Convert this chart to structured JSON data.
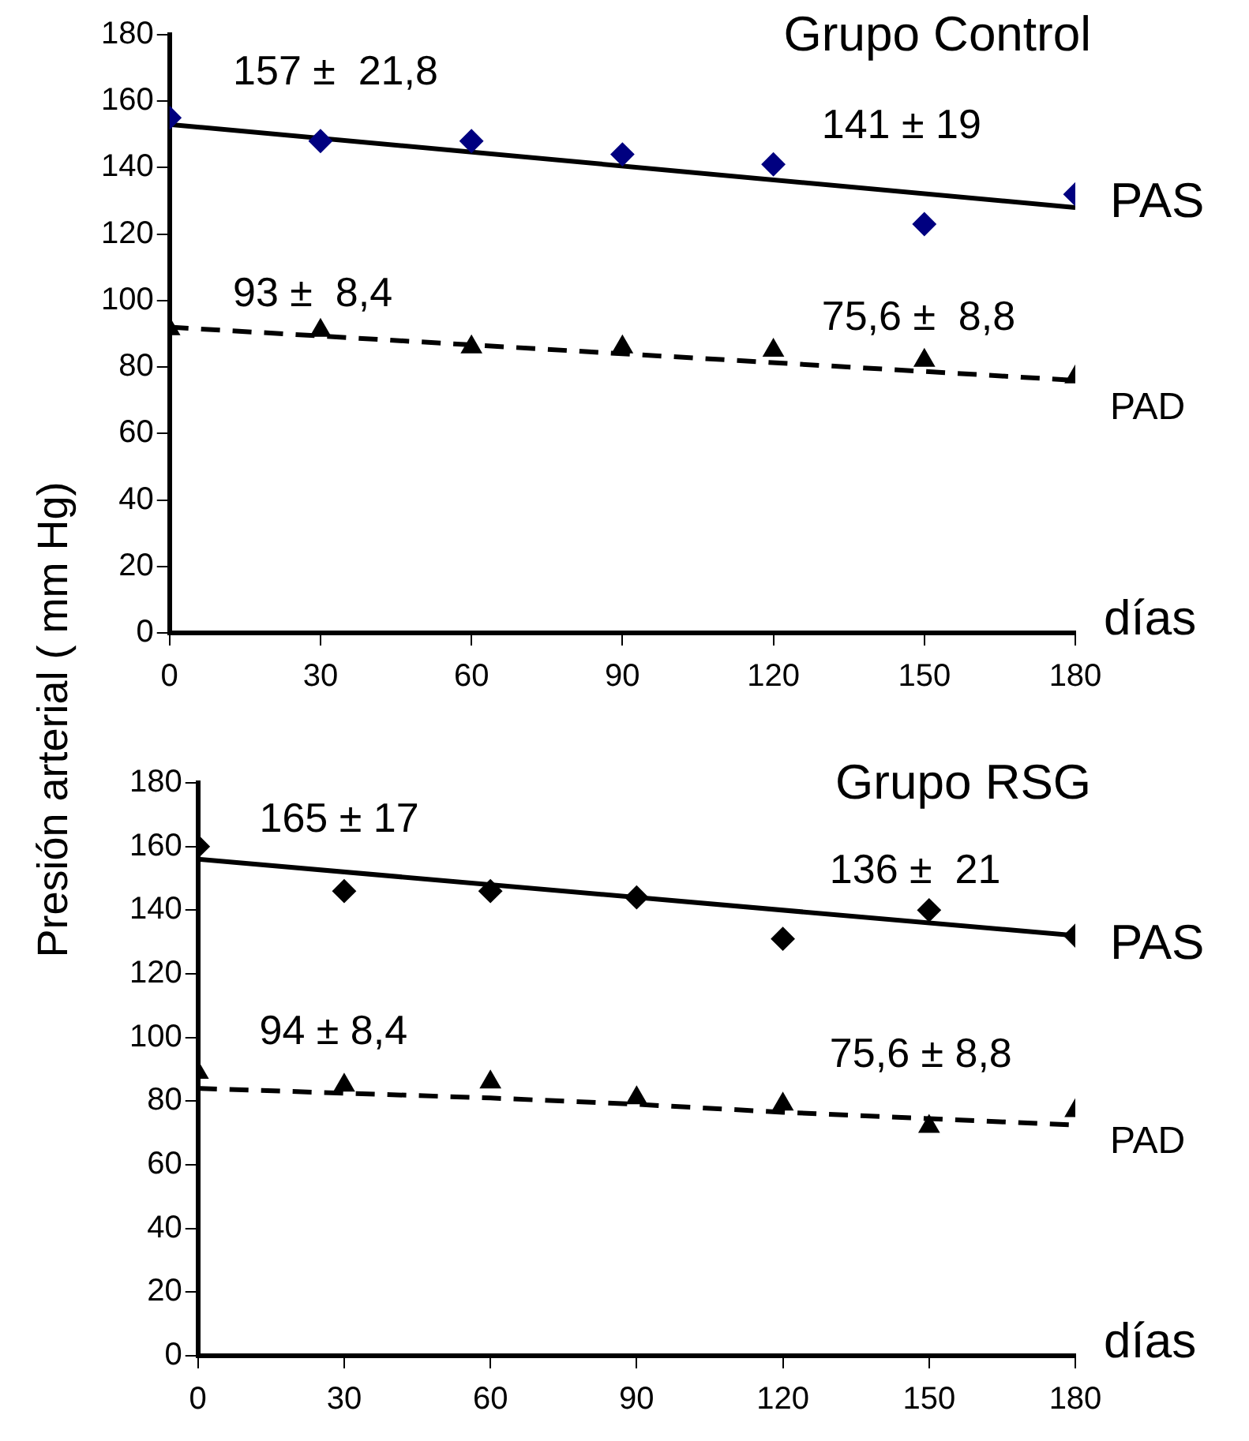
{
  "chart_data": [
    {
      "type": "scatter",
      "title": "Grupo Control",
      "xlabel": "días",
      "ylabel": "Presión arterial ( mm Hg)",
      "xlim": [
        0,
        180
      ],
      "xticks": [
        0,
        30,
        60,
        90,
        120,
        150,
        180
      ],
      "ylim": [
        0,
        180
      ],
      "yticks": [
        0,
        20,
        40,
        60,
        80,
        100,
        120,
        140,
        160,
        180
      ],
      "grid": false,
      "legend": false,
      "annotations": [
        "157 ±  21,8",
        "141 ± 19",
        "93 ±  8,4",
        "75,6 ±  8,8"
      ],
      "series": [
        {
          "name": "PAS",
          "type": "scatter",
          "marker": "diamond",
          "color": "#000080",
          "x": [
            0,
            30,
            60,
            90,
            120,
            150,
            180
          ],
          "values": [
            155,
            148,
            148,
            144,
            141,
            123,
            132
          ]
        },
        {
          "type": "line",
          "marker": "none",
          "line_style": "solid",
          "color": "#000000",
          "x": [
            0,
            180
          ],
          "values": [
            153,
            128
          ]
        },
        {
          "name": "PAD",
          "type": "scatter",
          "marker": "triangle",
          "color": "#000000",
          "x": [
            0,
            30,
            60,
            90,
            120,
            150,
            180
          ],
          "values": [
            91.5,
            91,
            86,
            86,
            85,
            82,
            77
          ]
        },
        {
          "type": "line",
          "marker": "none",
          "line_style": "dashed",
          "color": "#000000",
          "x": [
            0,
            180
          ],
          "values": [
            92,
            76
          ]
        }
      ]
    },
    {
      "type": "scatter",
      "title": "Grupo RSG",
      "xlabel": "días",
      "xlim": [
        0,
        180
      ],
      "xticks": [
        0,
        30,
        60,
        90,
        120,
        150,
        180
      ],
      "ylim": [
        0,
        180
      ],
      "yticks": [
        0,
        20,
        40,
        60,
        80,
        100,
        120,
        140,
        160,
        180
      ],
      "grid": false,
      "legend": false,
      "annotations": [
        "165 ± 17",
        "136 ±  21",
        "94 ± 8,4",
        "75,6 ± 8,8"
      ],
      "series": [
        {
          "name": "PAS",
          "type": "scatter",
          "marker": "diamond",
          "color": "#000000",
          "x": [
            0,
            30,
            60,
            90,
            120,
            150,
            180
          ],
          "values": [
            160,
            146,
            146,
            144,
            131,
            140,
            132
          ]
        },
        {
          "type": "line",
          "marker": "none",
          "line_style": "solid",
          "color": "#000000",
          "x": [
            0,
            180
          ],
          "values": [
            156,
            132
          ]
        },
        {
          "name": "PAD",
          "type": "scatter",
          "marker": "triangle",
          "color": "#000000",
          "x": [
            0,
            30,
            60,
            90,
            120,
            150,
            180
          ],
          "values": [
            89,
            85,
            86,
            81,
            79,
            72,
            77
          ]
        },
        {
          "type": "line",
          "marker": "none",
          "line_style": "dashed",
          "color": "#000000",
          "x": [
            0,
            30,
            60,
            90,
            120,
            150,
            180
          ],
          "values": [
            84,
            82.5,
            81,
            79,
            76.5,
            74.5,
            72.5
          ]
        }
      ]
    }
  ]
}
